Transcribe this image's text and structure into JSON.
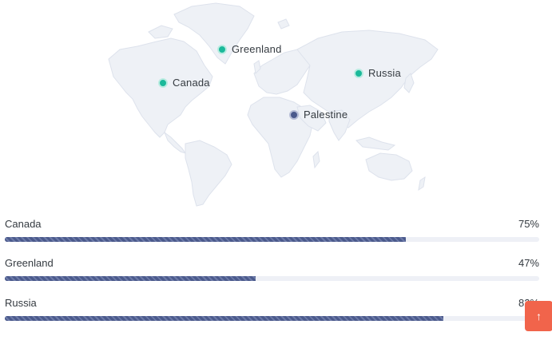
{
  "map": {
    "land_color": "#eef1f6",
    "border_color": "#dde2ec",
    "markers": [
      {
        "id": "greenland",
        "label": "Greenland",
        "color": "#1bb99a"
      },
      {
        "id": "canada",
        "label": "Canada",
        "color": "#1bb99a"
      },
      {
        "id": "russia",
        "label": "Russia",
        "color": "#1bb99a"
      },
      {
        "id": "palestine",
        "label": "Palestine",
        "color": "#4b5a8c"
      }
    ]
  },
  "progress": [
    {
      "name": "Canada",
      "value_label": "75%",
      "value": 75
    },
    {
      "name": "Greenland",
      "value_label": "47%",
      "value": 47
    },
    {
      "name": "Russia",
      "value_label": "82%",
      "value": 82
    }
  ],
  "colors": {
    "bar": "#4b5a8c",
    "track": "#eef0f6",
    "scroll_button": "#f1644b"
  },
  "scroll_top": {
    "icon": "arrow-up-icon",
    "glyph": "↑"
  }
}
